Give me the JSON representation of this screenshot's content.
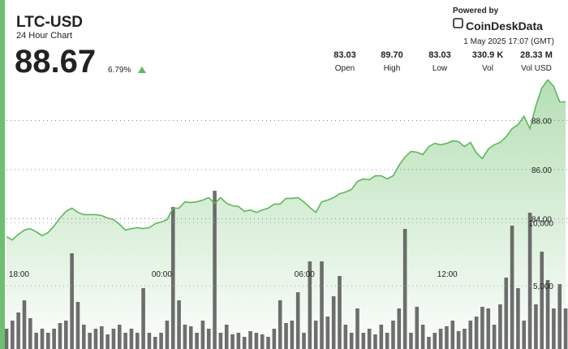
{
  "header": {
    "title": "LTC-USD",
    "subtitle": "24 Hour Chart",
    "price": "88.67",
    "change": "6.79%",
    "powered": "Powered by",
    "brand": "CoinDeskData",
    "timestamp": "1 May 2025 17:07 (GMT)",
    "stats": [
      {
        "value": "83.03",
        "label": "Open"
      },
      {
        "value": "89.70",
        "label": "High"
      },
      {
        "value": "83.03",
        "label": "Low"
      },
      {
        "value": "330.9 K",
        "label": "Vol"
      },
      {
        "value": "28.33 M",
        "label": "Vol USD"
      }
    ]
  },
  "chart_data": [
    {
      "type": "area",
      "color": "#5cb85c",
      "grid": true,
      "xlim": [
        17.9,
        41.5
      ],
      "xticks": [
        {
          "value": 18,
          "label": "18:00"
        },
        {
          "value": 24,
          "label": "00:00"
        },
        {
          "value": 30,
          "label": "06:00"
        },
        {
          "value": 36,
          "label": "12:00"
        }
      ],
      "ylim": [
        78.7,
        89.7
      ],
      "yticks": [
        {
          "value": 84,
          "label": "84.00"
        },
        {
          "value": 86,
          "label": "86.00"
        },
        {
          "value": 88,
          "label": "88.00"
        }
      ],
      "x": [
        17.9,
        18.15,
        18.4,
        18.65,
        18.9,
        19.15,
        19.4,
        19.65,
        19.9,
        20.15,
        20.4,
        20.65,
        20.9,
        21.15,
        21.4,
        21.65,
        21.9,
        22.15,
        22.4,
        22.65,
        22.9,
        23.15,
        23.4,
        23.65,
        23.9,
        24.15,
        24.4,
        24.65,
        24.9,
        25.15,
        25.4,
        25.65,
        25.9,
        26.15,
        26.4,
        26.65,
        26.9,
        27.15,
        27.4,
        27.65,
        27.9,
        28.15,
        28.4,
        28.65,
        28.9,
        29.15,
        29.4,
        29.65,
        29.9,
        30.15,
        30.4,
        30.65,
        30.9,
        31.15,
        31.4,
        31.65,
        31.9,
        32.15,
        32.4,
        32.65,
        32.9,
        33.15,
        33.4,
        33.65,
        33.9,
        34.15,
        34.4,
        34.65,
        34.9,
        35.15,
        35.4,
        35.65,
        35.9,
        36.15,
        36.4,
        36.65,
        36.9,
        37.15,
        37.4,
        37.65,
        37.9,
        38.15,
        38.4,
        38.65,
        38.9,
        39.15,
        39.4,
        39.65,
        39.9,
        40.15,
        40.4,
        40.65,
        40.9,
        41.15,
        41.4
      ],
      "values": [
        83.27,
        83.14,
        83.37,
        83.54,
        83.6,
        83.47,
        83.31,
        83.44,
        83.7,
        84.03,
        84.3,
        84.43,
        84.26,
        84.17,
        84.17,
        84.17,
        84.13,
        84.03,
        83.97,
        83.77,
        83.54,
        83.6,
        83.64,
        83.6,
        83.64,
        83.8,
        83.87,
        83.97,
        84.43,
        84.43,
        84.69,
        84.66,
        84.69,
        84.76,
        84.86,
        84.63,
        84.86,
        84.63,
        84.53,
        84.5,
        84.3,
        84.36,
        84.26,
        84.36,
        84.43,
        84.6,
        84.6,
        84.83,
        84.83,
        84.86,
        84.69,
        84.46,
        84.26,
        84.69,
        84.76,
        84.86,
        85.02,
        85.09,
        85.19,
        85.52,
        85.62,
        85.59,
        85.75,
        85.75,
        85.62,
        85.75,
        86.18,
        86.51,
        86.74,
        86.71,
        86.61,
        86.94,
        87.07,
        87.01,
        87.07,
        87.17,
        87.14,
        86.94,
        87.11,
        86.68,
        86.45,
        86.84,
        87.01,
        87.11,
        87.34,
        87.67,
        87.83,
        88.17,
        87.67,
        88.6,
        89.32,
        89.65,
        89.39,
        88.76,
        88.76
      ]
    },
    {
      "type": "bar",
      "color": "#555555",
      "grid": true,
      "xlim": [
        17.9,
        41.5
      ],
      "ylim": [
        0,
        14000
      ],
      "yticks": [
        {
          "value": 5000,
          "label": "5,000"
        },
        {
          "value": 10000,
          "label": "10,000"
        }
      ],
      "x": [
        17.9,
        18.15,
        18.4,
        18.65,
        18.9,
        19.15,
        19.4,
        19.65,
        19.9,
        20.15,
        20.4,
        20.65,
        20.9,
        21.15,
        21.4,
        21.65,
        21.9,
        22.15,
        22.4,
        22.65,
        22.9,
        23.15,
        23.4,
        23.65,
        23.9,
        24.15,
        24.4,
        24.65,
        24.9,
        25.15,
        25.4,
        25.65,
        25.9,
        26.15,
        26.4,
        26.65,
        26.9,
        27.15,
        27.4,
        27.65,
        27.9,
        28.15,
        28.4,
        28.65,
        28.9,
        29.15,
        29.4,
        29.65,
        29.9,
        30.15,
        30.4,
        30.65,
        30.9,
        31.15,
        31.4,
        31.65,
        31.9,
        32.15,
        32.4,
        32.65,
        32.9,
        33.15,
        33.4,
        33.65,
        33.9,
        34.15,
        34.4,
        34.65,
        34.9,
        35.15,
        35.4,
        35.65,
        35.9,
        36.15,
        36.4,
        36.65,
        36.9,
        37.15,
        37.4,
        37.65,
        37.9,
        38.15,
        38.4,
        38.65,
        38.9,
        39.15,
        39.4,
        39.65,
        39.9,
        40.15,
        40.4,
        40.65,
        40.9,
        41.15,
        41.4
      ],
      "values": [
        1605,
        2247,
        2889,
        3852,
        2440,
        1284,
        1605,
        1284,
        1605,
        2054,
        2247,
        7576,
        3724,
        1926,
        1284,
        1605,
        1798,
        1156,
        1605,
        1926,
        1284,
        1605,
        1284,
        4815,
        1284,
        963,
        1284,
        2247,
        11235,
        3852,
        1926,
        1798,
        1284,
        2247,
        1605,
        12519,
        1284,
        1926,
        1156,
        1284,
        963,
        1412,
        1284,
        1156,
        963,
        1605,
        3852,
        2054,
        2247,
        4494,
        1284,
        6934,
        2247,
        6934,
        2568,
        4173,
        5778,
        1926,
        1284,
        3210,
        1284,
        1605,
        1156,
        1926,
        1284,
        2247,
        3210,
        9502,
        1284,
        3338,
        1926,
        963,
        1284,
        1605,
        1798,
        2247,
        1412,
        1605,
        2247,
        2568,
        3338,
        3210,
        1926,
        3531,
        5650,
        9758,
        4815,
        2247,
        10786,
        3531,
        7704,
        5457,
        3210,
        5136,
        3210
      ]
    }
  ]
}
